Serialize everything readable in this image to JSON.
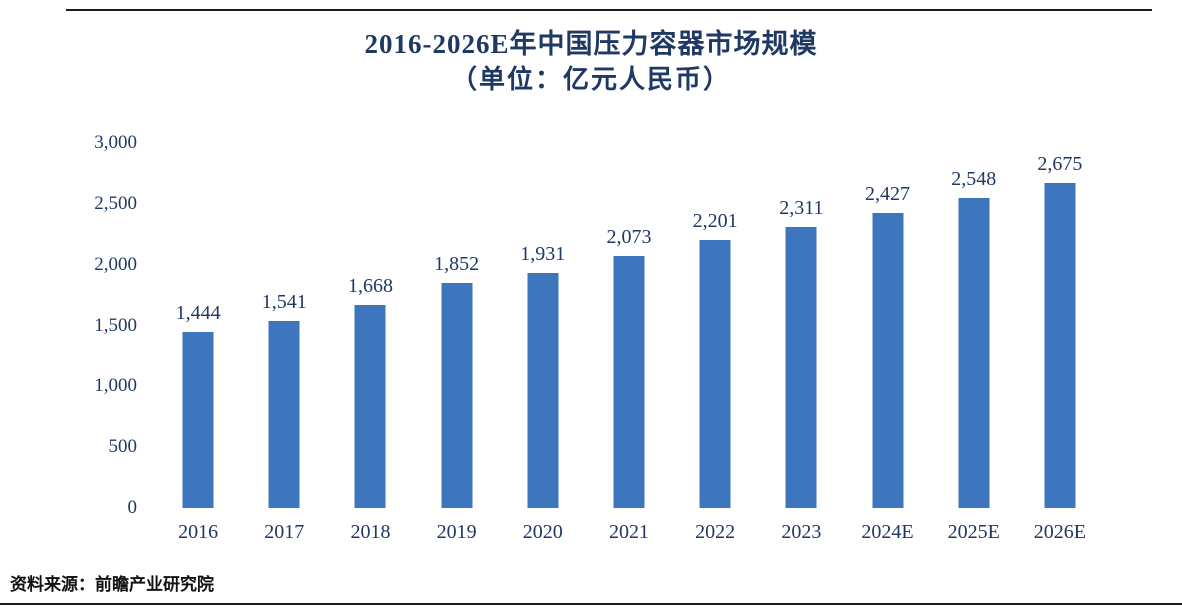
{
  "chart_data": {
    "type": "bar",
    "title": "2016-2026E年中国压力容器市场规模",
    "subtitle": "（单位：亿元人民币）",
    "categories": [
      "2016",
      "2017",
      "2018",
      "2019",
      "2020",
      "2021",
      "2022",
      "2023",
      "2024E",
      "2025E",
      "2026E"
    ],
    "values": [
      1444,
      1541,
      1668,
      1852,
      1931,
      2073,
      2201,
      2311,
      2427,
      2548,
      2675
    ],
    "value_labels": [
      "1,444",
      "1,541",
      "1,668",
      "1,852",
      "1,931",
      "2,073",
      "2,201",
      "2,311",
      "2,427",
      "2,548",
      "2,675"
    ],
    "y_ticks": [
      "0",
      "500",
      "1,000",
      "1,500",
      "2,000",
      "2,500",
      "3,000"
    ],
    "ylim": [
      0,
      3000
    ],
    "xlabel": "",
    "ylabel": "",
    "grid": false,
    "legend": false,
    "bar_color": "#3d76bc",
    "text_color": "#1f3864"
  },
  "footer": {
    "source": "资料来源：前瞻产业研究院"
  }
}
